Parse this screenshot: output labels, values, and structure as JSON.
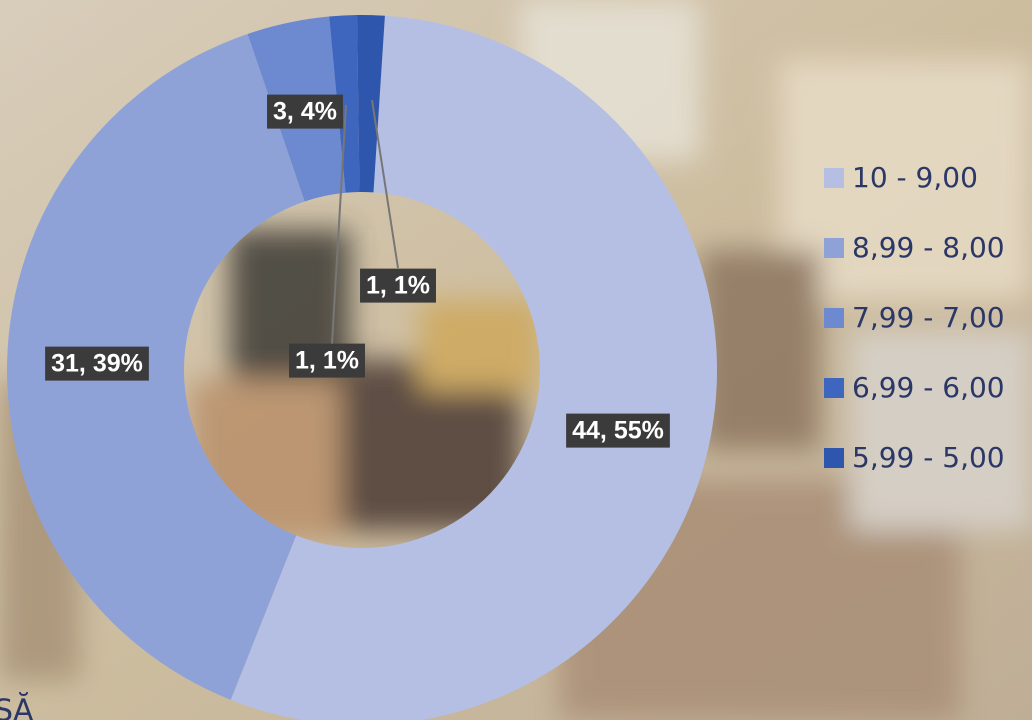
{
  "chart_data": {
    "type": "donut",
    "categories": [
      "10 - 9,00",
      "8,99 - 8,00",
      "7,99 - 7,00",
      "6,99 - 6,00",
      "5,99 - 5,00"
    ],
    "values": [
      44,
      31,
      3,
      1,
      1
    ],
    "value_labels": [
      "44, 55%",
      "31, 39%",
      "3, 4%",
      "1, 1%",
      "1, 1%"
    ],
    "colors": [
      "#b4bfe3",
      "#8fa2d7",
      "#6d89cf",
      "#3e66bf",
      "#2f56ad"
    ],
    "legend": "right",
    "annotations": [
      "SĂ"
    ]
  }
}
